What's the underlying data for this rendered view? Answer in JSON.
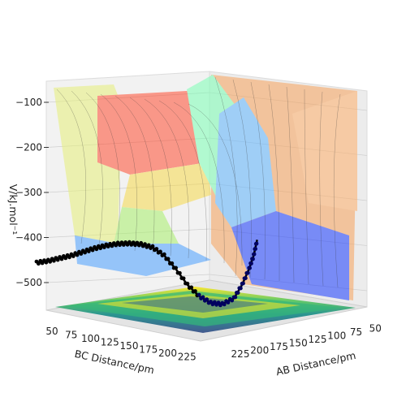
{
  "chart_data": {
    "type": "surface3d",
    "title": "",
    "xlabel": "AB Distance/pm",
    "ylabel": "BC Distance/pm",
    "zlabel": "V/kJ.mol⁻¹",
    "x_range": [
      50,
      250
    ],
    "y_range": [
      50,
      250
    ],
    "z_range": [
      -570,
      -70
    ],
    "x_ticks": [
      "50",
      "75",
      "100",
      "125",
      "150",
      "175",
      "200",
      "225"
    ],
    "y_ticks": [
      "50",
      "75",
      "100",
      "125",
      "150",
      "175",
      "200",
      "225"
    ],
    "z_ticks": [
      "−100",
      "−200",
      "−300",
      "−400",
      "−500"
    ],
    "surface_colormap": "jet",
    "contour_colormap": "viridis",
    "grid": true,
    "trajectory": {
      "description_color": "#000033",
      "points_bc_ab_v": [
        [
          45,
          250,
          -456
        ],
        [
          55,
          240,
          -452
        ],
        [
          65,
          230,
          -446
        ],
        [
          75,
          220,
          -440
        ],
        [
          85,
          210,
          -432
        ],
        [
          95,
          200,
          -424
        ],
        [
          105,
          190,
          -418
        ],
        [
          115,
          180,
          -414
        ],
        [
          125,
          170,
          -413
        ],
        [
          135,
          160,
          -415
        ],
        [
          145,
          150,
          -422
        ],
        [
          155,
          140,
          -440
        ],
        [
          165,
          130,
          -470
        ],
        [
          175,
          120,
          -505
        ],
        [
          185,
          110,
          -530
        ],
        [
          195,
          100,
          -545
        ],
        [
          205,
          90,
          -548
        ],
        [
          215,
          80,
          -535
        ],
        [
          222,
          72,
          -505
        ],
        [
          228,
          66,
          -470
        ],
        [
          232,
          62,
          -440
        ],
        [
          235,
          60,
          -405
        ]
      ]
    }
  }
}
